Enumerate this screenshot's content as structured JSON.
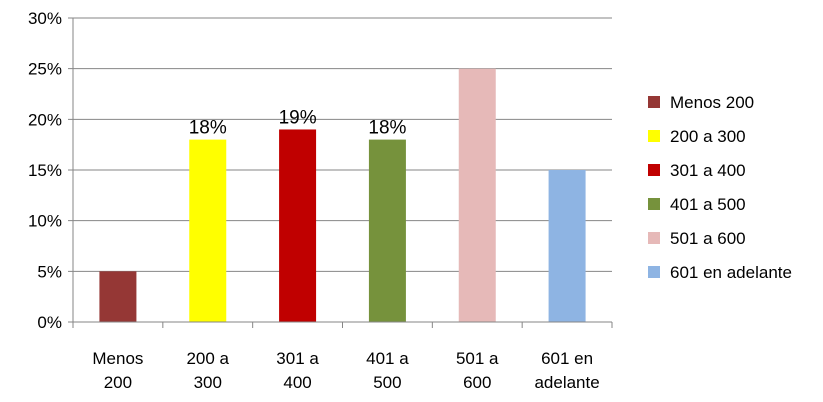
{
  "chart_data": {
    "type": "bar",
    "categories": [
      [
        "Menos",
        "200"
      ],
      [
        "200 a",
        "300"
      ],
      [
        "301 a",
        "400"
      ],
      [
        "401 a",
        "500"
      ],
      [
        "501 a",
        "600"
      ],
      [
        "601 en",
        "adelante"
      ]
    ],
    "values": [
      5,
      18,
      19,
      18,
      25,
      15
    ],
    "colors": [
      "#953735",
      "#ffff00",
      "#c00000",
      "#76923c",
      "#e6b9b8",
      "#8eb4e3"
    ],
    "data_labels": [
      "",
      "18%",
      "19%",
      "18%",
      "",
      ""
    ],
    "ylim": [
      0,
      30
    ],
    "yticks": [
      "0%",
      "5%",
      "10%",
      "15%",
      "20%",
      "25%",
      "30%"
    ],
    "grid": true,
    "legend": {
      "position": "right",
      "entries": [
        "Menos 200",
        "200 a 300",
        "301 a 400",
        "401 a 500",
        "501 a 600",
        "601 en adelante"
      ]
    }
  }
}
